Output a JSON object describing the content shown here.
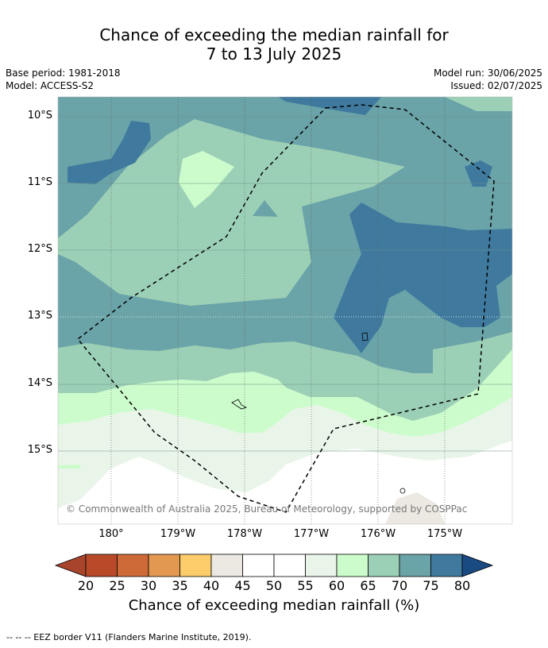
{
  "title": {
    "line1": "Chance of exceeding the median rainfall for",
    "line2": "7 to 13 July 2025"
  },
  "meta": {
    "base_period": "Base period: 1981-2018",
    "model": "Model: ACCESS-S2",
    "model_run": "Model run: 30/06/2025",
    "issued": "Issued: 02/07/2025"
  },
  "map": {
    "lat_labels": [
      "10°S",
      "11°S",
      "12°S",
      "13°S",
      "14°S",
      "15°S"
    ],
    "lon_labels": [
      "180°",
      "179°W",
      "178°W",
      "177°W",
      "176°W",
      "175°W"
    ],
    "copyright": "© Commonwealth of Australia 2025, Bureau of Meteorology, supported by COSPPac"
  },
  "colorbar": {
    "ticks": [
      "20",
      "25",
      "30",
      "35",
      "40",
      "45",
      "50",
      "55",
      "60",
      "65",
      "70",
      "75",
      "80"
    ],
    "colors": [
      "#a8442c",
      "#b84a2a",
      "#cd6a38",
      "#e29850",
      "#fccd6a",
      "#ece8e2",
      "#ffffff",
      "#ffffff",
      "#eaf5e9",
      "#ccfccc",
      "#9cd0b6",
      "#6aa3a8",
      "#3f7a9e",
      "#1a4a82"
    ],
    "title": "Chance of exceeding median rainfall (%)"
  },
  "footer": "--  --  -- EEZ border V11 (Flanders Marine Institute, 2019)."
}
